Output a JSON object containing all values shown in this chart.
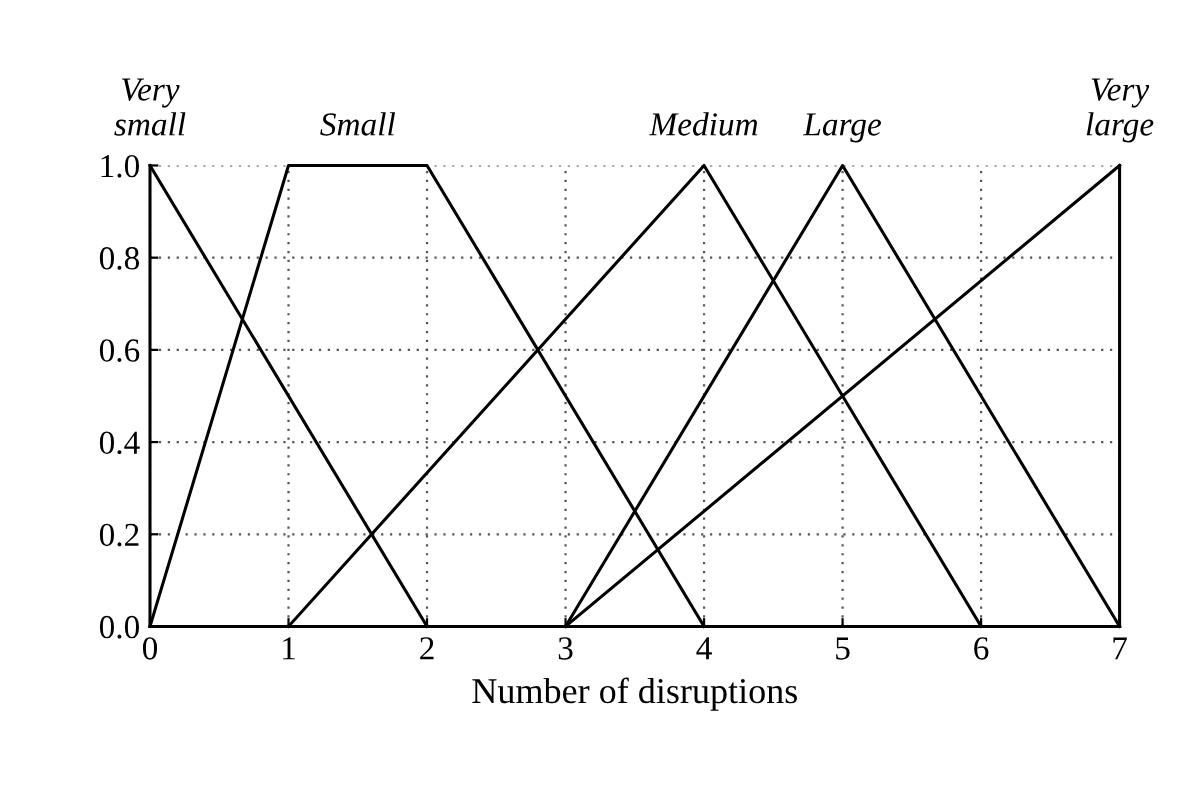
{
  "chart_data": {
    "type": "line",
    "xlabel": "Number of disruptions",
    "series": [
      {
        "name": "Very small",
        "color": "#000000",
        "x": [
          0,
          2
        ],
        "values": [
          1,
          0
        ]
      },
      {
        "name": "Small",
        "color": "#000000",
        "x": [
          0,
          1,
          2,
          4
        ],
        "values": [
          0,
          1,
          1,
          0
        ]
      },
      {
        "name": "Medium",
        "color": "#000000",
        "x": [
          1,
          4,
          6
        ],
        "values": [
          0,
          1,
          0
        ]
      },
      {
        "name": "Large",
        "color": "#000000",
        "x": [
          3,
          5,
          7
        ],
        "values": [
          0,
          1,
          0
        ]
      },
      {
        "name": "Very large",
        "color": "#000000",
        "x": [
          3,
          7
        ],
        "values": [
          0,
          1
        ]
      }
    ],
    "xlim": [
      0,
      7
    ],
    "xticks": [
      0,
      1,
      2,
      3,
      4,
      5,
      6,
      7
    ],
    "ylim": [
      0,
      1
    ],
    "yticks": [
      {
        "value": 0,
        "label": "0.0"
      },
      {
        "value": 0.2,
        "label": "0.2"
      },
      {
        "value": 0.4,
        "label": "0.4"
      },
      {
        "value": 0.6,
        "label": "0.6"
      },
      {
        "value": 0.8,
        "label": "0.8"
      },
      {
        "value": 1,
        "label": "1.0"
      }
    ],
    "grid": true,
    "legend": false,
    "marker": "none",
    "line_style": "solid"
  }
}
